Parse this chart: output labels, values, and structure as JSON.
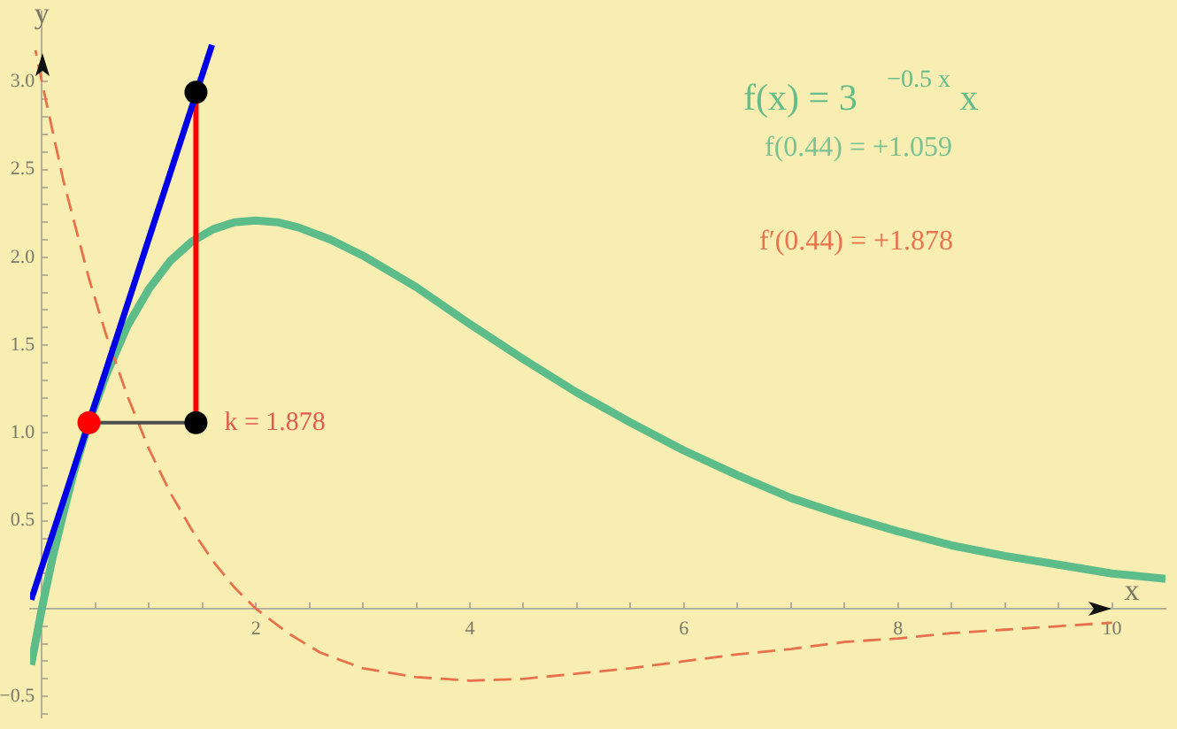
{
  "chart_data": {
    "type": "line",
    "xlabel": "x",
    "ylabel": "y",
    "xlim": [
      -0.11,
      10.5
    ],
    "ylim": [
      -0.62,
      3.4
    ],
    "xticks": [
      {
        "value": 0.5,
        "label": null
      },
      {
        "value": 1,
        "label": null
      },
      {
        "value": 1.5,
        "label": null
      },
      2,
      {
        "value": 2.5,
        "label": null
      },
      {
        "value": 3,
        "label": null
      },
      {
        "value": 3.5,
        "label": null
      },
      4,
      {
        "value": 4.5,
        "label": null
      },
      {
        "value": 5,
        "label": null
      },
      {
        "value": 5.5,
        "label": null
      },
      6,
      {
        "value": 6.5,
        "label": null
      },
      {
        "value": 7,
        "label": null
      },
      {
        "value": 7.5,
        "label": null
      },
      8,
      {
        "value": 8.5,
        "label": null
      },
      {
        "value": 9,
        "label": null
      },
      {
        "value": 9.5,
        "label": null
      },
      10
    ],
    "yticks": [
      {
        "value": -0.6,
        "label": null
      },
      {
        "value": -0.5,
        "label": "−0.5"
      },
      {
        "value": -0.4,
        "label": null
      },
      {
        "value": -0.3,
        "label": null
      },
      {
        "value": -0.2,
        "label": null
      },
      {
        "value": -0.1,
        "label": null
      },
      {
        "value": 0.1,
        "label": null
      },
      {
        "value": 0.2,
        "label": null
      },
      {
        "value": 0.3,
        "label": null
      },
      {
        "value": 0.4,
        "label": null
      },
      0.5,
      {
        "value": 0.6,
        "label": null
      },
      {
        "value": 0.7,
        "label": null
      },
      {
        "value": 0.8,
        "label": null
      },
      {
        "value": 0.9,
        "label": null
      },
      {
        "value": 1,
        "label": "1.0"
      },
      {
        "value": 1.1,
        "label": null
      },
      {
        "value": 1.2,
        "label": null
      },
      {
        "value": 1.3,
        "label": null
      },
      {
        "value": 1.4,
        "label": null
      },
      1.5,
      {
        "value": 1.6,
        "label": null
      },
      {
        "value": 1.7,
        "label": null
      },
      {
        "value": 1.8,
        "label": null
      },
      {
        "value": 1.9,
        "label": null
      },
      {
        "value": 2,
        "label": "2.0"
      },
      {
        "value": 2.1,
        "label": null
      },
      {
        "value": 2.2,
        "label": null
      },
      {
        "value": 2.3,
        "label": null
      },
      {
        "value": 2.4,
        "label": null
      },
      2.5,
      {
        "value": 2.6,
        "label": null
      },
      {
        "value": 2.7,
        "label": null
      },
      {
        "value": 2.8,
        "label": null
      },
      {
        "value": 2.9,
        "label": null
      },
      {
        "value": 3,
        "label": "3.0"
      }
    ],
    "series": [
      {
        "color": "#5cbd8b",
        "x": [
          -0.1,
          0,
          0.1,
          0.2,
          0.3,
          0.44,
          0.6,
          0.8,
          1,
          1.2,
          1.4,
          1.6,
          1.8,
          2,
          2.2,
          2.4,
          2.7,
          3,
          3.5,
          4,
          4.5,
          5,
          5.5,
          6,
          6.5,
          7,
          7.5,
          8,
          8.5,
          9,
          9.5,
          10,
          10.5
        ],
        "values": [
          -0.32,
          0,
          0.29,
          0.54,
          0.78,
          1.06,
          1.33,
          1.61,
          1.82,
          1.98,
          2.09,
          2.16,
          2.2,
          2.21,
          2.2,
          2.17,
          2.1,
          2.01,
          1.83,
          1.62,
          1.42,
          1.23,
          1.06,
          0.9,
          0.76,
          0.63,
          0.53,
          0.44,
          0.36,
          0.3,
          0.25,
          0.2,
          0.17
        ]
      },
      {
        "color": "#e8704a",
        "line_style": "dashed",
        "x": [
          -0.06,
          0,
          0.2,
          0.44,
          0.6,
          0.8,
          1,
          1.2,
          1.4,
          1.6,
          1.8,
          2,
          2.3,
          2.6,
          3,
          3.5,
          4,
          4.5,
          5,
          5.5,
          6,
          6.5,
          7,
          7.5,
          8,
          8.5,
          9,
          9.5,
          10
        ],
        "values": [
          3.18,
          3,
          2.44,
          1.88,
          1.56,
          1.21,
          0.91,
          0.66,
          0.45,
          0.27,
          0.12,
          0,
          -0.14,
          -0.25,
          -0.34,
          -0.39,
          -0.41,
          -0.4,
          -0.37,
          -0.34,
          -0.3,
          -0.26,
          -0.23,
          -0.19,
          -0.17,
          -0.14,
          -0.12,
          -0.1,
          -0.08
        ]
      },
      {
        "color": "#4d4d4d",
        "x": [
          0.44,
          1.44
        ],
        "values": [
          1.059,
          1.059
        ]
      },
      {
        "color": "#ff0000",
        "x": [
          1.44,
          1.44
        ],
        "values": [
          1.059,
          2.94
        ]
      },
      {
        "color": "#0000e6",
        "x": [
          -0.1,
          1.59
        ],
        "values": [
          0.05,
          3.21
        ]
      },
      {
        "type": "scatter",
        "color": "#000000",
        "marker": "circle",
        "x": [
          1.44,
          1.44
        ],
        "values": [
          1.059,
          2.94
        ]
      },
      {
        "type": "scatter",
        "color": "#ff0000",
        "marker": "circle",
        "x": [
          0.44
        ],
        "values": [
          1.059
        ]
      }
    ],
    "annotations": [
      "f(x) = 3 $^{−0.5 x}$ x",
      "f(0.44) = +1.059",
      "f′(0.44) = +1.878",
      {
        "text": "k = 1.878",
        "x": 1.44,
        "y": 1.059
      }
    ]
  }
}
